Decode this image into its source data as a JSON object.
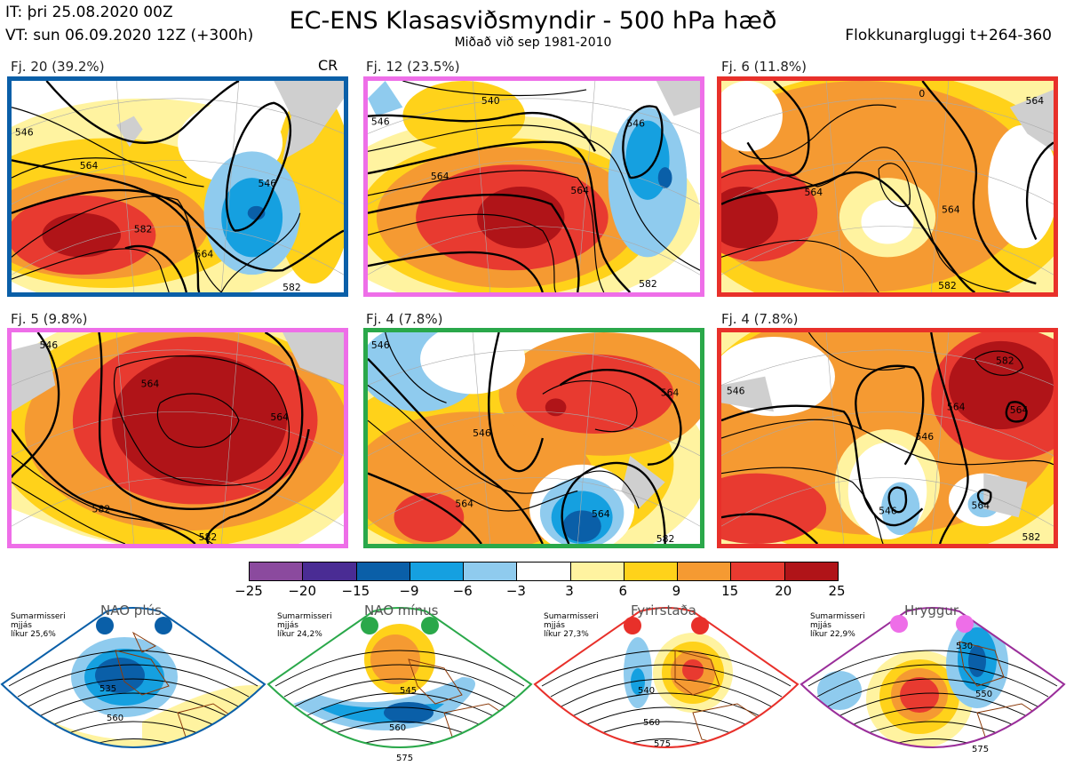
{
  "header": {
    "initial_time": "IT: þri 25.08.2020 00Z",
    "valid_time": "VT: sun 06.09.2020 12Z  (+300h)",
    "title": "EC-ENS Klasasviðsmyndir - 500 hPa hæð",
    "subtitle": "Miðað við sep 1981-2010",
    "window": "Flokkunargluggi t+264-360"
  },
  "panels": [
    {
      "label": "Fj. 20 (39.2%)",
      "tag": "CR",
      "border_color": "#0a5fa8",
      "contours": [
        "546",
        "564",
        "582",
        "546",
        "564",
        "582"
      ]
    },
    {
      "label": "Fj. 12 (23.5%)",
      "tag": "",
      "border_color": "#ee6ee8",
      "contours": [
        "546",
        "540",
        "546",
        "564",
        "564",
        "582"
      ]
    },
    {
      "label": "Fj. 6 (11.8%)",
      "tag": "",
      "border_color": "#e8302a",
      "contours": [
        "0",
        "564",
        "564",
        "564",
        "582"
      ]
    },
    {
      "label": "Fj. 5 (9.8%)",
      "tag": "",
      "border_color": "#ee6ee8",
      "contours": [
        "546",
        "564",
        "564",
        "582",
        "582"
      ]
    },
    {
      "label": "Fj. 4 (7.8%)",
      "tag": "",
      "border_color": "#2aa84a",
      "contours": [
        "546",
        "564",
        "546",
        "564",
        "564",
        "582"
      ]
    },
    {
      "label": "Fj. 4 (7.8%)",
      "tag": "",
      "border_color": "#e8302a",
      "contours": [
        "546",
        "582",
        "564",
        "546",
        "564",
        "546",
        "564",
        "582"
      ]
    }
  ],
  "colorbar": {
    "colors": [
      "#8b4a9e",
      "#4a2c94",
      "#0a5fa8",
      "#15a0e0",
      "#8fcbee",
      "#ffffff",
      "#fff3a0",
      "#ffd21a",
      "#f59a32",
      "#e83a30",
      "#b01418"
    ],
    "ticks": [
      "−25",
      "−20",
      "−15",
      "−9",
      "−6",
      "−3",
      "3",
      "6",
      "9",
      "15",
      "20",
      "25"
    ]
  },
  "regimes": [
    {
      "name": "NAO plús",
      "color": "#0a5fa8",
      "season": "Sumarmisseri",
      "smoothing": "mjjás",
      "probability": "líkur 25,6%",
      "labels": [
        "535",
        "560"
      ]
    },
    {
      "name": "NAO mínus",
      "color": "#2aa84a",
      "season": "Sumarmisseri",
      "smoothing": "mjjás",
      "probability": "líkur 24,2%",
      "labels": [
        "545",
        "560",
        "575"
      ]
    },
    {
      "name": "Fyrirstaða",
      "color": "#e8302a",
      "season": "Sumarmisseri",
      "smoothing": "mjjás",
      "probability": "líkur 27,3%",
      "labels": [
        "540",
        "560",
        "575"
      ]
    },
    {
      "name": "Hryggur",
      "color": "#9a2e9a",
      "season": "Sumarmisseri",
      "smoothing": "mjjás",
      "probability": "líkur 22,9%",
      "labels": [
        "530",
        "550",
        "575"
      ]
    }
  ]
}
